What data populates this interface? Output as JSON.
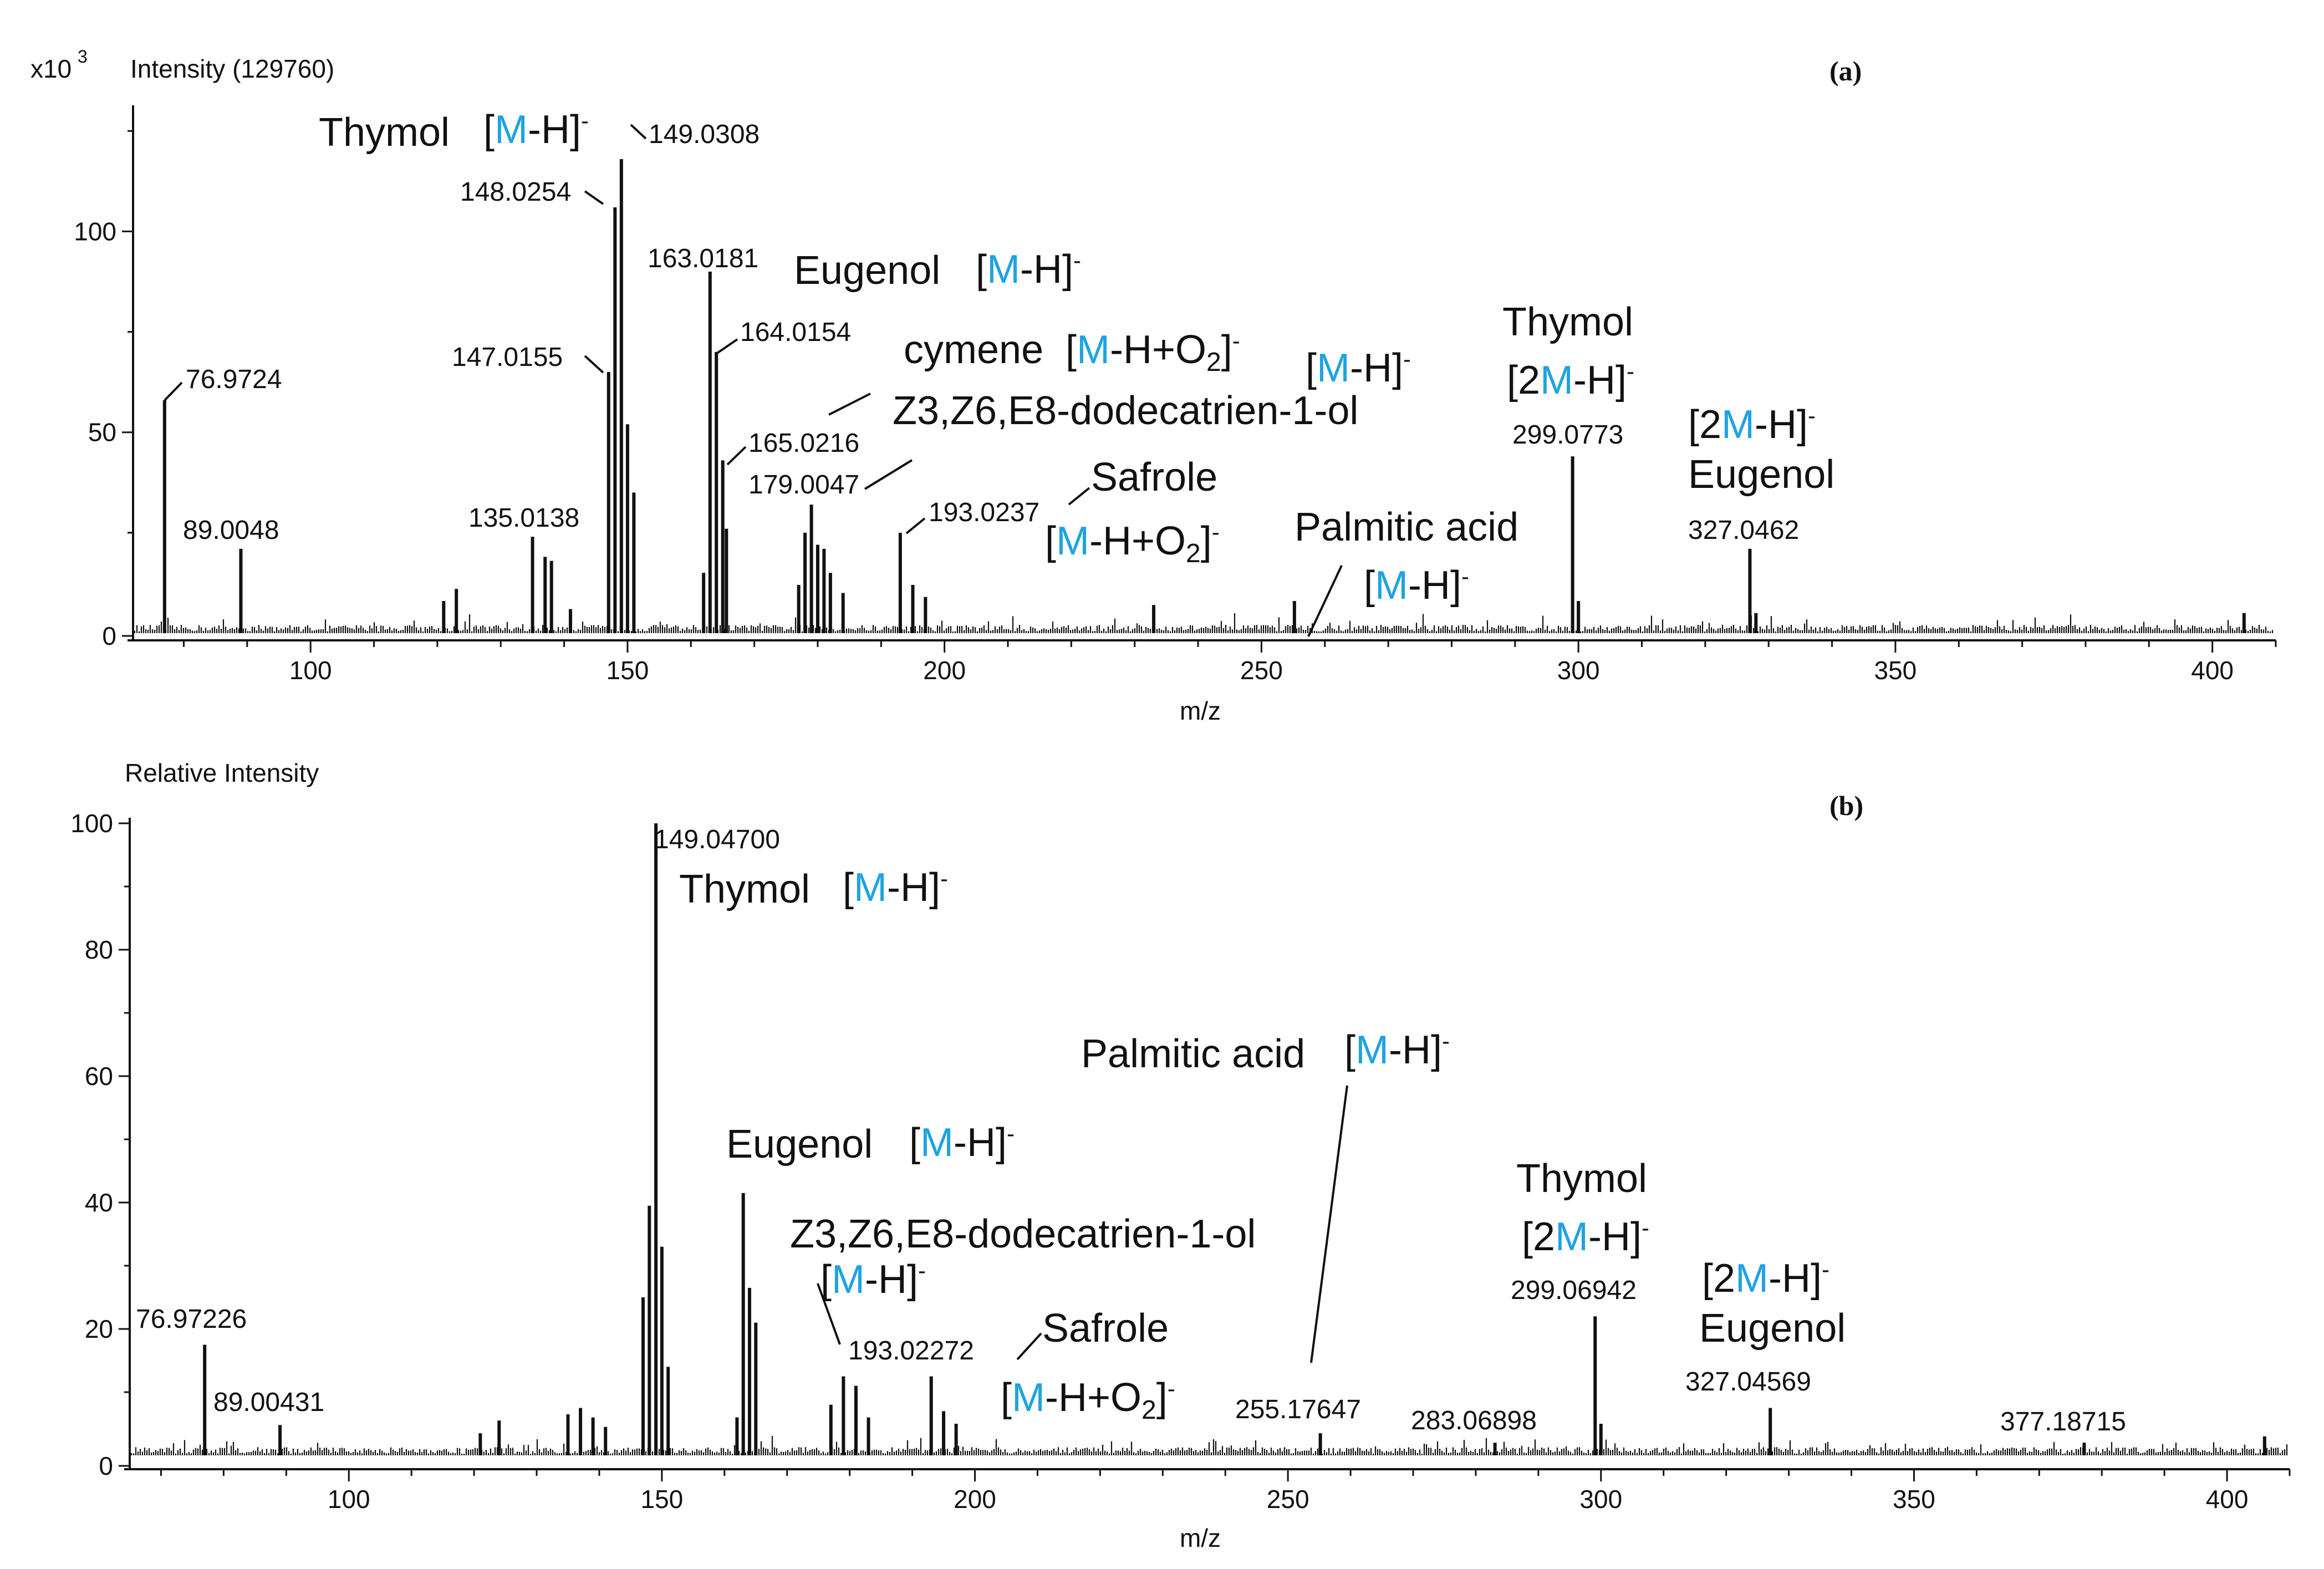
{
  "chart_data": [
    {
      "type": "bar",
      "panel_label": "(a)",
      "y_scale_prefix": "x10",
      "y_scale_exp": "3",
      "ylabel": "Intensity (129760)",
      "xlabel": "m/z",
      "xlim": [
        72,
        410
      ],
      "ylim": [
        0,
        130
      ],
      "xticks": [
        "100",
        "150",
        "200",
        "250",
        "300",
        "350",
        "400"
      ],
      "yticks": [
        "0",
        "50",
        "100"
      ],
      "peaks": [
        {
          "mz": 76.9724,
          "value": 58,
          "label": "76.9724"
        },
        {
          "mz": 89.0048,
          "value": 21,
          "label": "89.0048"
        },
        {
          "mz": 121.0,
          "value": 8
        },
        {
          "mz": 123.0,
          "value": 11
        },
        {
          "mz": 135.0138,
          "value": 24,
          "label": "135.0138"
        },
        {
          "mz": 137.0,
          "value": 19
        },
        {
          "mz": 138.0,
          "value": 18
        },
        {
          "mz": 141.0,
          "value": 6
        },
        {
          "mz": 147.0155,
          "value": 65,
          "label": "147.0155"
        },
        {
          "mz": 148.0254,
          "value": 106,
          "label": "148.0254"
        },
        {
          "mz": 149.0308,
          "value": 118,
          "label": "149.0308"
        },
        {
          "mz": 150.0,
          "value": 52
        },
        {
          "mz": 151.0,
          "value": 35
        },
        {
          "mz": 162.0,
          "value": 15
        },
        {
          "mz": 163.0181,
          "value": 90,
          "label": "163.0181"
        },
        {
          "mz": 164.0154,
          "value": 70,
          "label": "164.0154"
        },
        {
          "mz": 165.0216,
          "value": 43,
          "label": "165.0216"
        },
        {
          "mz": 165.6,
          "value": 26
        },
        {
          "mz": 177.0,
          "value": 12
        },
        {
          "mz": 178.0,
          "value": 25
        },
        {
          "mz": 179.0047,
          "value": 32,
          "label": "179.0047"
        },
        {
          "mz": 180.0,
          "value": 22
        },
        {
          "mz": 181.0,
          "value": 21
        },
        {
          "mz": 182.0,
          "value": 15
        },
        {
          "mz": 184.0,
          "value": 10
        },
        {
          "mz": 193.0237,
          "value": 25,
          "label": "193.0237"
        },
        {
          "mz": 195.0,
          "value": 12
        },
        {
          "mz": 197.0,
          "value": 9
        },
        {
          "mz": 233.0,
          "value": 7
        },
        {
          "mz": 255.2,
          "value": 8
        },
        {
          "mz": 299.0773,
          "value": 44,
          "label": "299.0773"
        },
        {
          "mz": 300.0,
          "value": 8
        },
        {
          "mz": 327.0462,
          "value": 21,
          "label": "327.0462"
        },
        {
          "mz": 328.0,
          "value": 5
        },
        {
          "mz": 405.0,
          "value": 5
        }
      ],
      "annotations": [
        {
          "name": "Thymol",
          "ion_pre": "[",
          "ion_m": "M",
          "ion_post": "-H]",
          "ion_sup": "-",
          "peak": "149.0308"
        },
        {
          "name": "Eugenol",
          "ion_pre": "[",
          "ion_m": "M",
          "ion_post": "-H]",
          "ion_sup": "-",
          "peak": "163.0181"
        },
        {
          "name": "cymene",
          "ion_pre": "[",
          "ion_m": "M",
          "ion_post": "-H+O",
          "ion_sub": "2",
          "ion_close": "]",
          "ion_sup": "-"
        },
        {
          "name": "Z3,Z6,E8-dodecatrien-1-ol",
          "ion_pre": "[",
          "ion_m": "M",
          "ion_post": "-H]",
          "ion_sup": "-"
        },
        {
          "name": "Safrole",
          "ion_pre": "[",
          "ion_m": "M",
          "ion_post": "-H+O",
          "ion_sub": "2",
          "ion_close": "]",
          "ion_sup": "-"
        },
        {
          "name": "Palmitic acid",
          "ion_pre": "[",
          "ion_m": "M",
          "ion_post": "-H]",
          "ion_sup": "-"
        },
        {
          "name": "Thymol",
          "ion_pre": "[2",
          "ion_m": "M",
          "ion_post": "-H]",
          "ion_sup": "-",
          "peak": "299.0773"
        },
        {
          "name": "Eugenol",
          "ion_pre": "[2",
          "ion_m": "M",
          "ion_post": "-H]",
          "ion_sup": "-",
          "peak": "327.0462"
        }
      ]
    },
    {
      "type": "bar",
      "panel_label": "(b)",
      "ylabel": "Relative Intensity",
      "xlabel": "m/z",
      "xlim": [
        65,
        410
      ],
      "ylim": [
        0,
        100
      ],
      "xticks": [
        "100",
        "150",
        "200",
        "250",
        "300",
        "350",
        "400"
      ],
      "yticks": [
        "0",
        "20",
        "40",
        "60",
        "80",
        "100"
      ],
      "peaks": [
        {
          "mz": 76.97226,
          "value": 17.5,
          "label": "76.97226"
        },
        {
          "mz": 89.00431,
          "value": 4.8,
          "label": "89.00431"
        },
        {
          "mz": 121.0,
          "value": 3.5
        },
        {
          "mz": 124.0,
          "value": 5.5
        },
        {
          "mz": 135.0,
          "value": 6.5
        },
        {
          "mz": 137.0,
          "value": 7.5
        },
        {
          "mz": 139.0,
          "value": 6
        },
        {
          "mz": 141.0,
          "value": 4.5
        },
        {
          "mz": 147.0,
          "value": 25
        },
        {
          "mz": 148.0,
          "value": 39.5
        },
        {
          "mz": 149.047,
          "value": 100,
          "label": "149.04700"
        },
        {
          "mz": 150.0,
          "value": 33
        },
        {
          "mz": 151.0,
          "value": 14
        },
        {
          "mz": 162.0,
          "value": 6
        },
        {
          "mz": 163.0,
          "value": 41.5
        },
        {
          "mz": 164.0,
          "value": 26.5
        },
        {
          "mz": 165.0,
          "value": 21
        },
        {
          "mz": 177.0,
          "value": 8
        },
        {
          "mz": 179.0,
          "value": 12.5
        },
        {
          "mz": 181.0,
          "value": 11
        },
        {
          "mz": 183.0,
          "value": 6
        },
        {
          "mz": 193.02272,
          "value": 12.5,
          "label": "193.02272"
        },
        {
          "mz": 195.0,
          "value": 7
        },
        {
          "mz": 197.0,
          "value": 5
        },
        {
          "mz": 255.17647,
          "value": 3.5,
          "label": "255.17647"
        },
        {
          "mz": 283.06898,
          "value": 2,
          "label": "283.06898"
        },
        {
          "mz": 299.06942,
          "value": 22,
          "label": "299.06942"
        },
        {
          "mz": 300.0,
          "value": 5
        },
        {
          "mz": 327.04569,
          "value": 7.5,
          "label": "327.04569"
        },
        {
          "mz": 377.18715,
          "value": 2,
          "label": "377.18715"
        },
        {
          "mz": 406.0,
          "value": 3
        }
      ],
      "annotations": [
        {
          "name": "Thymol",
          "ion_pre": "[",
          "ion_m": "M",
          "ion_post": "-H]",
          "ion_sup": "-",
          "peak": "149.04700"
        },
        {
          "name": "Eugenol",
          "ion_pre": "[",
          "ion_m": "M",
          "ion_post": "-H]",
          "ion_sup": "-"
        },
        {
          "name": "Palmitic acid",
          "ion_pre": "[",
          "ion_m": "M",
          "ion_post": "-H]",
          "ion_sup": "-",
          "peak": "255.17647"
        },
        {
          "name": "Z3,Z6,E8-dodecatrien-1-ol",
          "ion_pre": "[",
          "ion_m": "M",
          "ion_post": "-H]",
          "ion_sup": "-"
        },
        {
          "name": "Safrole",
          "ion_pre": "[",
          "ion_m": "M",
          "ion_post": "-H+O",
          "ion_sub": "2",
          "ion_close": "]",
          "ion_sup": "-",
          "peak": "193.02272"
        },
        {
          "name": "Thymol",
          "ion_pre": "[2",
          "ion_m": "M",
          "ion_post": "-H]",
          "ion_sup": "-",
          "peak": "299.06942"
        },
        {
          "name": "Eugenol",
          "ion_pre": "[2",
          "ion_m": "M",
          "ion_post": "-H]",
          "ion_sup": "-",
          "peak": "327.04569"
        }
      ]
    }
  ],
  "colors": {
    "ink": "#111111",
    "highlight_m": "#1fa3e0",
    "background": "#ffffff"
  }
}
